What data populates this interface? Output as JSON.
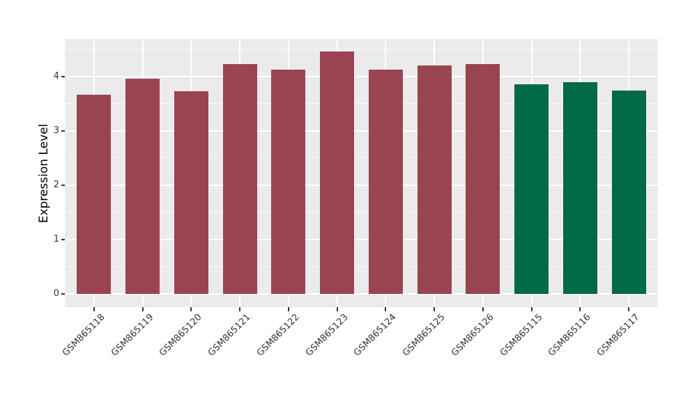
{
  "chart_data": {
    "type": "bar",
    "title": "",
    "xlabel": "",
    "ylabel": "Expression Level",
    "categories": [
      "GSM865118",
      "GSM865119",
      "GSM865120",
      "GSM865121",
      "GSM865122",
      "GSM865123",
      "GSM865124",
      "GSM865125",
      "GSM865126",
      "GSM865115",
      "GSM865116",
      "GSM865117"
    ],
    "values": [
      3.67,
      3.96,
      3.73,
      4.23,
      4.12,
      4.46,
      4.12,
      4.2,
      4.23,
      3.86,
      3.9,
      3.74
    ],
    "bar_colors": [
      "#9A4451",
      "#9A4451",
      "#9A4451",
      "#9A4451",
      "#9A4451",
      "#9A4451",
      "#9A4451",
      "#9A4451",
      "#9A4451",
      "#006948",
      "#006948",
      "#006948"
    ],
    "yticks": [
      0,
      1,
      2,
      3,
      4
    ],
    "yticks_minor": [
      0.5,
      1.5,
      2.5,
      3.5,
      4.5
    ],
    "ylim": [
      -0.243,
      4.69
    ],
    "grid": true,
    "legend": false,
    "legend_position": "none",
    "colors": {
      "panel_background": "#EBEBEB",
      "grid_major": "#FFFFFF",
      "grid_minor": "#FFFFFF",
      "tick_mark": "#333333",
      "tick_label": "#333333",
      "axis_title": "#000000",
      "figure_background": "#FFFFFF"
    }
  }
}
